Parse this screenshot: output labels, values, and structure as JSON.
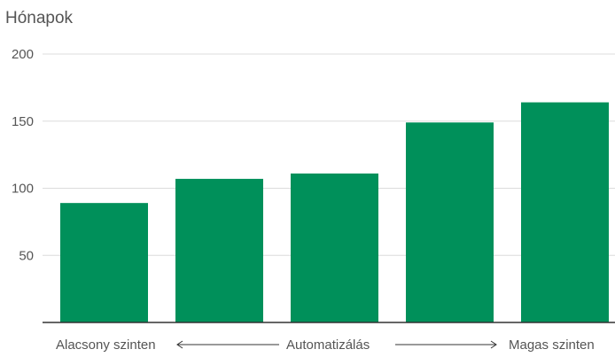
{
  "chart_data": {
    "type": "bar",
    "ylabel": "Hónapok",
    "ylim": [
      0,
      200
    ],
    "yticks": [
      50,
      100,
      150,
      200
    ],
    "grid": true,
    "values": [
      89,
      107,
      111,
      149,
      164
    ],
    "colors": {
      "bar": "#00905a",
      "grid": "#dcdcdc",
      "axis": "#333333",
      "text": "#555555"
    },
    "xaxis": {
      "left_label": "Alacsony szinten",
      "center_label": "Automatizálás",
      "right_label": "Magas szinten"
    }
  }
}
